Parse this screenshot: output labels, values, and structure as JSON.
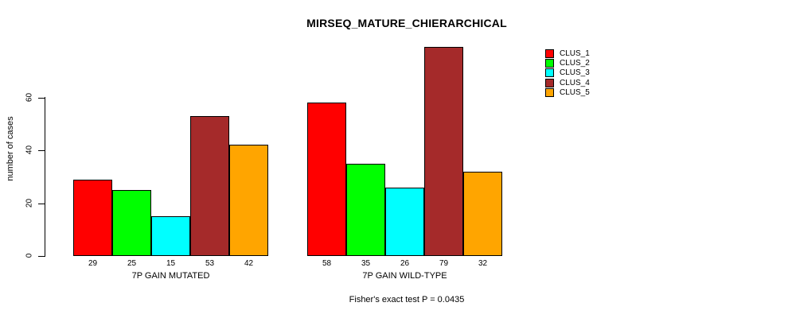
{
  "chart_data": {
    "type": "bar",
    "title": "MIRSEQ_MATURE_CHIERARCHICAL",
    "ylabel": "number of cases",
    "xlabel": "",
    "yticks": [
      "0",
      "20",
      "40",
      "60"
    ],
    "ytick_values": [
      0,
      20,
      40,
      60
    ],
    "ylim": [
      0,
      60
    ],
    "grid": false,
    "legend_position": "right",
    "bar_border_color": "#000000",
    "background_color": "#ffffff",
    "series": [
      {
        "name": "CLUS_1",
        "color": "#FF0000"
      },
      {
        "name": "CLUS_2",
        "color": "#00FF00"
      },
      {
        "name": "CLUS_3",
        "color": "#00FFFF"
      },
      {
        "name": "CLUS_4",
        "color": "#A52A2A"
      },
      {
        "name": "CLUS_5",
        "color": "#FFA500"
      }
    ],
    "groups": [
      {
        "label": "7P GAIN MUTATED",
        "values": [
          29,
          25,
          15,
          53,
          42
        ]
      },
      {
        "label": "7P GAIN WILD-TYPE",
        "values": [
          58,
          35,
          26,
          79,
          32
        ]
      }
    ],
    "footer": "Fisher's exact test P = 0.0435"
  }
}
